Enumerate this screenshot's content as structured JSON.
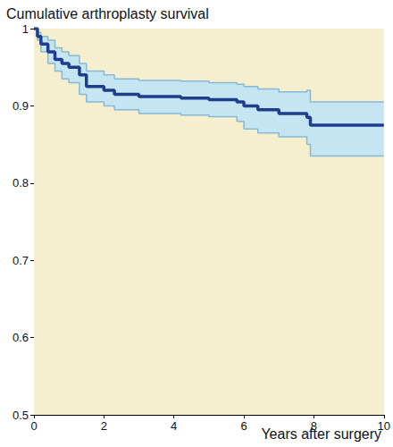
{
  "chart_data": {
    "type": "line",
    "title": "Cumulative arthroplasty survival",
    "xlabel": "Years after surgery",
    "x": [
      0,
      0.1,
      0.2,
      0.4,
      0.6,
      0.8,
      1.0,
      1.3,
      1.5,
      2.0,
      2.3,
      3.0,
      4.2,
      5.0,
      5.8,
      6.0,
      6.4,
      7.0,
      7.8,
      7.9,
      10
    ],
    "series": [
      {
        "color": "#1f3d8c",
        "line_style": "step",
        "values": [
          1.0,
          0.99,
          0.98,
          0.97,
          0.96,
          0.955,
          0.95,
          0.94,
          0.925,
          0.92,
          0.915,
          0.912,
          0.91,
          0.908,
          0.905,
          0.9,
          0.895,
          0.89,
          0.885,
          0.875,
          0.875
        ],
        "lower": [
          1.0,
          0.985,
          0.97,
          0.955,
          0.945,
          0.935,
          0.93,
          0.915,
          0.905,
          0.9,
          0.895,
          0.89,
          0.888,
          0.886,
          0.88,
          0.87,
          0.865,
          0.86,
          0.85,
          0.835,
          0.835
        ],
        "upper": [
          1.0,
          0.995,
          0.99,
          0.985,
          0.975,
          0.97,
          0.965,
          0.955,
          0.945,
          0.94,
          0.935,
          0.933,
          0.932,
          0.93,
          0.928,
          0.925,
          0.922,
          0.918,
          0.92,
          0.905,
          0.905
        ]
      }
    ],
    "xlim": [
      0,
      10
    ],
    "xticks": [
      0,
      2,
      4,
      6,
      8,
      10
    ],
    "ylim": [
      0.5,
      1
    ],
    "yticks": [
      0.5,
      0.6,
      0.7,
      0.8,
      0.9,
      1
    ],
    "grid": false
  }
}
